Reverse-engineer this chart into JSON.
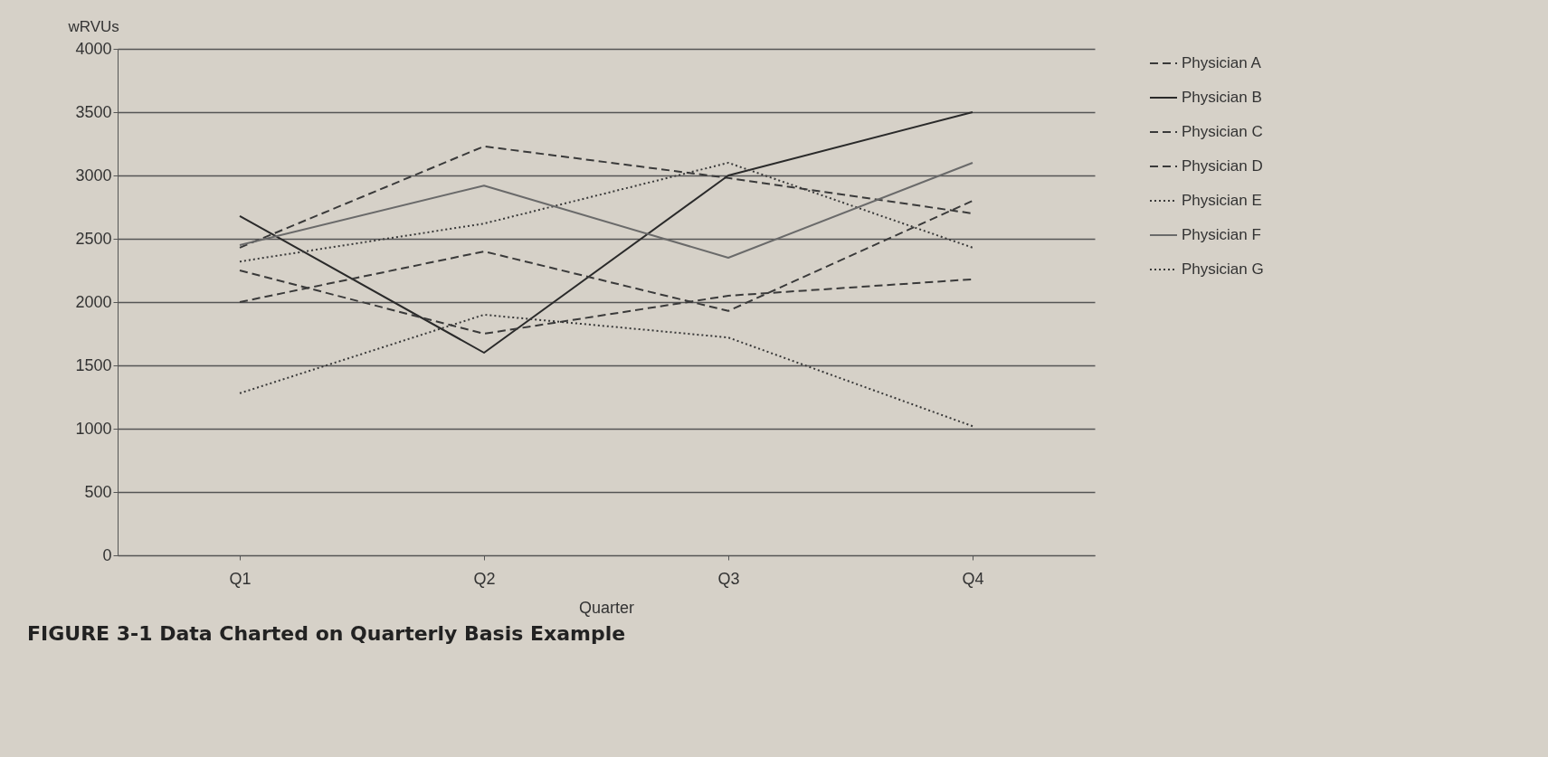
{
  "chart_data": {
    "type": "line",
    "title": "FIGURE 3-1    Data Charted on Quarterly Basis Example",
    "xlabel": "Quarter",
    "ylabel": "wRVUs",
    "categories": [
      "Q1",
      "Q2",
      "Q3",
      "Q4"
    ],
    "series": [
      {
        "name": "Physician A",
        "color": "#3a3a3a",
        "line_style": "dashed",
        "values": [
          2430,
          3230,
          2980,
          2700
        ]
      },
      {
        "name": "Physician B",
        "color": "#2a2a2a",
        "line_style": "solid",
        "values": [
          2680,
          1600,
          3000,
          3500
        ]
      },
      {
        "name": "Physician C",
        "color": "#3a3a3a",
        "line_style": "dashed",
        "values": [
          2000,
          2400,
          1930,
          2800
        ]
      },
      {
        "name": "Physician D",
        "color": "#3a3a3a",
        "line_style": "dashed",
        "values": [
          2250,
          1750,
          2050,
          2180
        ]
      },
      {
        "name": "Physician E",
        "color": "#3a3a3a",
        "line_style": "dotted",
        "values": [
          2320,
          2620,
          3100,
          2430
        ]
      },
      {
        "name": "Physician F",
        "color": "#6a6a6a",
        "line_style": "solid",
        "values": [
          2450,
          2920,
          2350,
          3100
        ]
      },
      {
        "name": "Physician G",
        "color": "#3a3a3a",
        "line_style": "dotted",
        "values": [
          1280,
          1900,
          1720,
          1020
        ]
      }
    ],
    "ylim": [
      0,
      4000
    ],
    "yticks": [
      0,
      500,
      1000,
      1500,
      2000,
      2500,
      3000,
      3500,
      4000
    ],
    "grid": "y",
    "legend": "right"
  }
}
